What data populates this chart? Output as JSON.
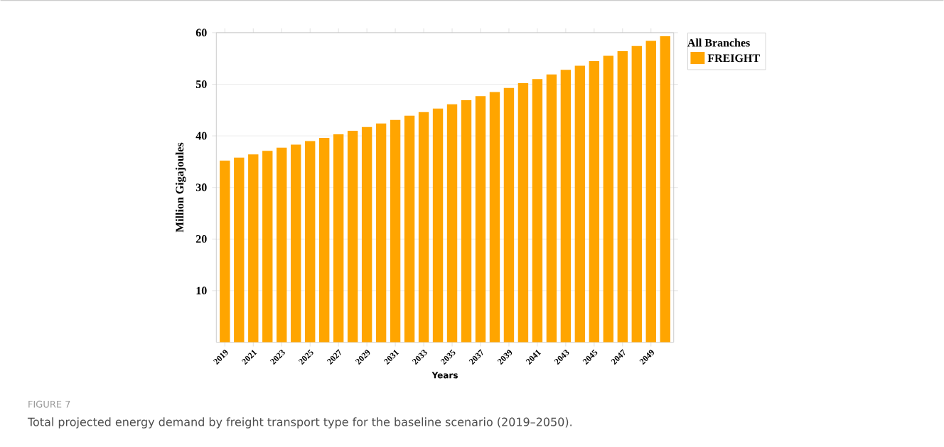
{
  "chart_data": {
    "type": "bar",
    "categories": [
      "2019",
      null,
      "2021",
      null,
      "2023",
      null,
      "2025",
      null,
      "2027",
      null,
      "2029",
      null,
      "2031",
      null,
      "2033",
      null,
      "2035",
      null,
      "2037",
      null,
      "2039",
      null,
      "2041",
      null,
      "2043",
      null,
      "2045",
      null,
      "2047",
      null,
      "2049",
      null
    ],
    "series": [
      {
        "name": "FREIGHT",
        "color": "#ffa500",
        "values": [
          35.2,
          35.8,
          36.4,
          37.1,
          37.7,
          38.3,
          39.0,
          39.6,
          40.3,
          41.0,
          41.7,
          42.4,
          43.1,
          43.9,
          44.6,
          45.3,
          46.1,
          46.9,
          47.7,
          48.5,
          49.3,
          50.2,
          51.0,
          51.9,
          52.8,
          53.6,
          54.5,
          55.5,
          56.4,
          57.4,
          58.4,
          59.3
        ]
      }
    ],
    "xlabel": "Years",
    "ylabel": "Million Gigajoules",
    "legend_title": "All Branches",
    "ylim": [
      0,
      60
    ],
    "yticks": [
      10,
      20,
      30,
      40,
      50,
      60
    ],
    "grid": "y",
    "legend": "top right",
    "annotations": [
      "FIGURE 7",
      "Total projected energy demand by freight transport type for the baseline scenario (2019–2050)."
    ]
  }
}
